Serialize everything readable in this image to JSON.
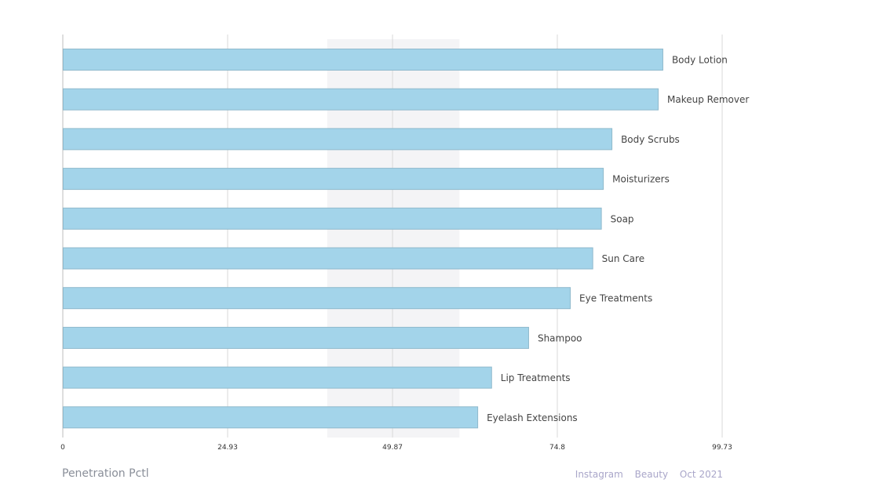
{
  "chart_data": {
    "type": "bar",
    "orientation": "horizontal",
    "categories": [
      "Body Lotion",
      "Makeup Remover",
      "Body Scrubs",
      "Moisturizers",
      "Soap",
      "Sun Care",
      "Eye Treatments",
      "Shampoo",
      "Lip Treatments",
      "Eyelash Extensions"
    ],
    "values": [
      90.7,
      90.0,
      83.0,
      81.7,
      81.4,
      80.1,
      76.7,
      70.4,
      64.8,
      62.7
    ],
    "xlim": [
      0,
      99.73
    ],
    "xticks": [
      "0",
      "24.93",
      "49.87",
      "74.8",
      "99.73"
    ],
    "highlight_band": [
      40,
      60
    ],
    "bar_color": "#a3d4ea",
    "bar_stroke": "#8fb9cc",
    "grid": true
  },
  "footer": {
    "title": "Penetration Pctl",
    "meta": [
      "Instagram",
      "Beauty",
      "Oct 2021"
    ]
  }
}
